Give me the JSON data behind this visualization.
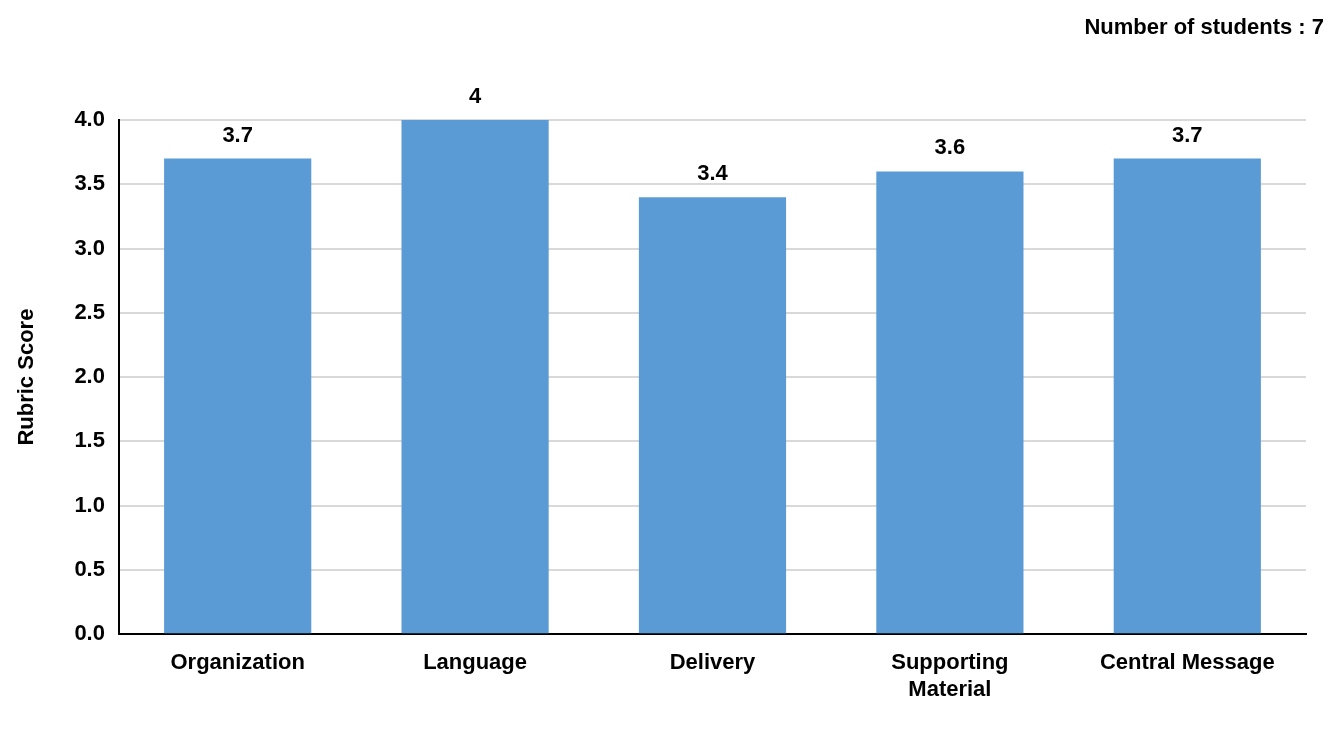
{
  "chart_data": {
    "type": "bar",
    "categories": [
      "Organization",
      "Language",
      "Delivery",
      "Supporting Material",
      "Central Message"
    ],
    "values": [
      3.7,
      4,
      3.4,
      3.6,
      3.7
    ],
    "color": "#5b9bd5",
    "ylabel": "Rubric Score",
    "ylim": [
      0,
      4
    ],
    "yticks": [
      {
        "value": 0,
        "label": "0.0"
      },
      {
        "value": 0.5,
        "label": "0.5"
      },
      {
        "value": 1,
        "label": "1.0"
      },
      {
        "value": 1.5,
        "label": "1.5"
      },
      {
        "value": 2,
        "label": "2.0"
      },
      {
        "value": 2.5,
        "label": "2.5"
      },
      {
        "value": 3,
        "label": "3.0"
      },
      {
        "value": 3.5,
        "label": "3.5"
      },
      {
        "value": 4,
        "label": "4.0"
      }
    ],
    "grid": "y",
    "data_labels": true,
    "legend": false,
    "annotations": [
      "Number of students : 7"
    ]
  }
}
